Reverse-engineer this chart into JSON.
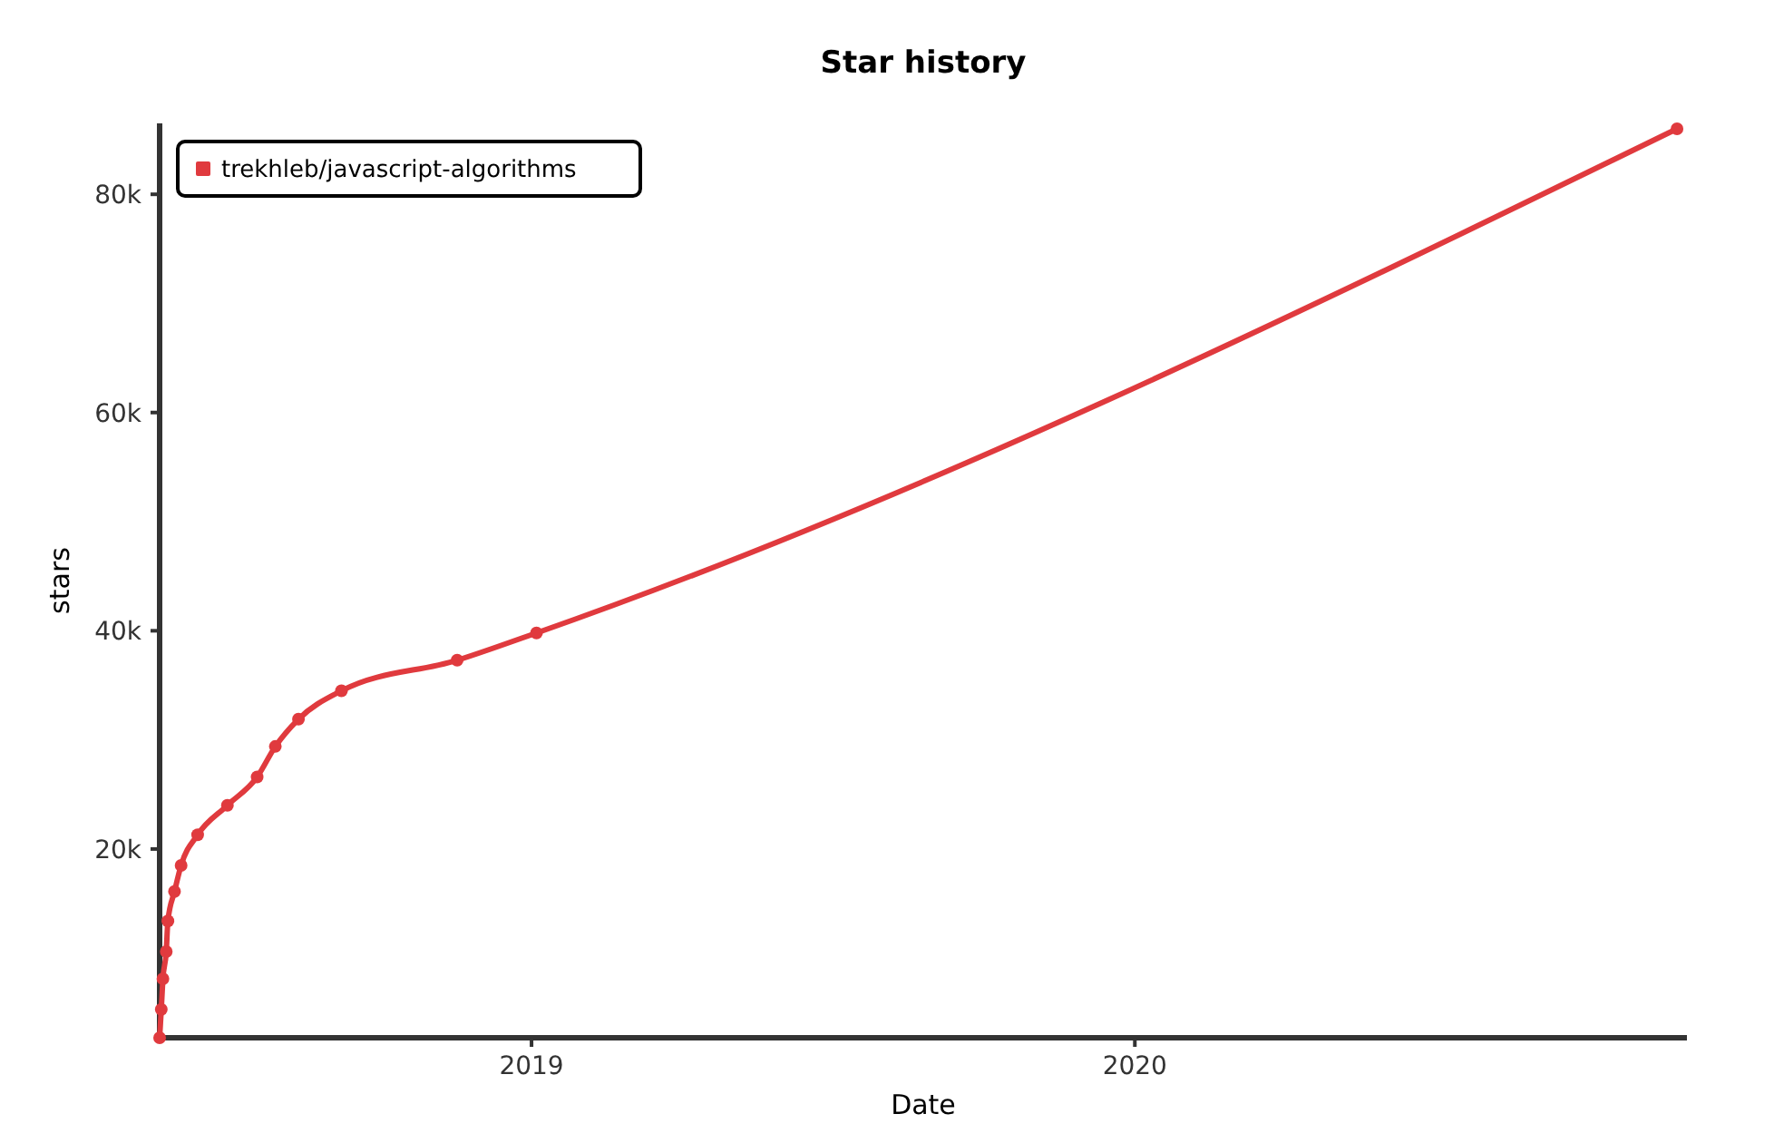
{
  "chart_data": {
    "type": "line",
    "title": "Star history",
    "xlabel": "Date",
    "ylabel": "stars",
    "x": [
      "2018-05-21",
      "2018-05-22",
      "2018-05-23",
      "2018-05-25",
      "2018-05-26",
      "2018-05-30",
      "2018-06-03",
      "2018-06-13",
      "2018-07-01",
      "2018-07-19",
      "2018-07-30",
      "2018-08-13",
      "2018-09-08",
      "2018-11-17",
      "2019-01-04",
      "2020-11-24"
    ],
    "series": [
      {
        "name": "trekhleb/javascript-algorithms",
        "color": "#e03a3e",
        "values": [
          2700,
          5300,
          8100,
          10600,
          13400,
          16100,
          18500,
          21300,
          24000,
          26600,
          29400,
          31900,
          34500,
          37300,
          39800,
          86000
        ]
      }
    ],
    "xlim": [
      "2018-05-21",
      "2020-11-30"
    ],
    "xticks": [
      {
        "value": "2019-01-01",
        "label": "2019"
      },
      {
        "value": "2020-01-01",
        "label": "2020"
      }
    ],
    "ylim": [
      2700,
      86500
    ],
    "yticks": [
      {
        "value": 20000,
        "label": "20k"
      },
      {
        "value": 40000,
        "label": "40k"
      },
      {
        "value": 60000,
        "label": "60k"
      },
      {
        "value": 80000,
        "label": "80k"
      }
    ],
    "grid": false,
    "legend": "top left",
    "marker": "circle",
    "line_style": "solid"
  }
}
